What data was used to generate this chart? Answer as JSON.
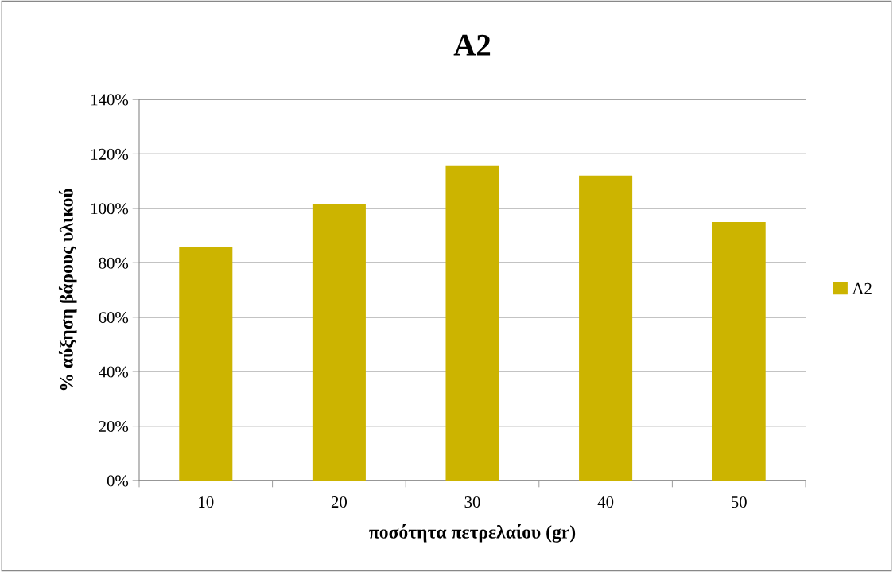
{
  "chart_data": {
    "type": "bar",
    "title": "A2",
    "xlabel": "ποσότητα πετρελαίου (gr)",
    "ylabel": "% αύξηση βάρους υλικού",
    "categories": [
      "10",
      "20",
      "30",
      "40",
      "50"
    ],
    "series": [
      {
        "name": "A2",
        "color": "#ccb400",
        "values": [
          85.7,
          101.5,
          115.5,
          112,
          95
        ]
      }
    ],
    "ylim": [
      0,
      140
    ],
    "yticks": [
      {
        "value": 0,
        "label": "0%"
      },
      {
        "value": 20,
        "label": "20%"
      },
      {
        "value": 40,
        "label": "40%"
      },
      {
        "value": 60,
        "label": "60%"
      },
      {
        "value": 80,
        "label": "80%"
      },
      {
        "value": 100,
        "label": "100%"
      },
      {
        "value": 120,
        "label": "120%"
      },
      {
        "value": 140,
        "label": "140%"
      }
    ],
    "grid": "y",
    "legend": "right"
  }
}
